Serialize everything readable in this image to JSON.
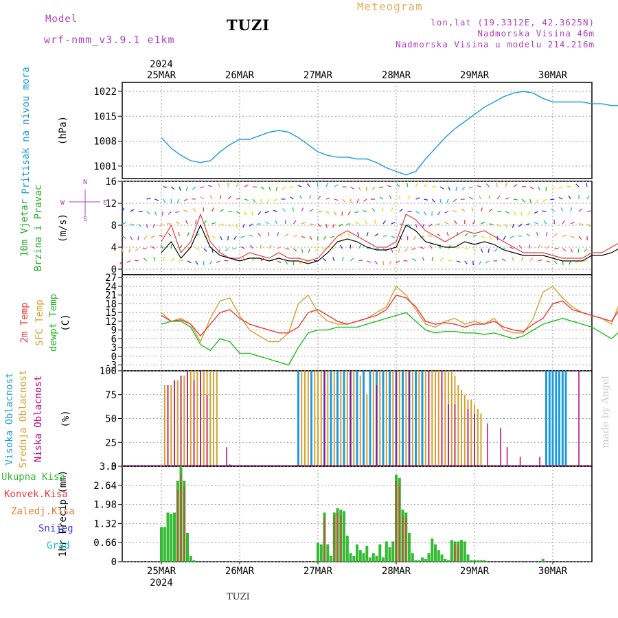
{
  "header": {
    "model_label": "Model",
    "model_name": "wrf-nmm_v3.9.1 e1km",
    "station": "TUZI",
    "meteogram": "Meteogram",
    "coords": "lon,lat (19.3312E, 42.3625N)",
    "elevation": "Nadmorska Visina 46m",
    "model_elevation": "Nadmorska Visina u modelu 214.216m",
    "footer_station": "TUZI",
    "credit": "made by Angel"
  },
  "colors": {
    "pressure": "#1e9be0",
    "wind_label": "#22aa22",
    "temp2m": "#e83a3a",
    "sfc": "#d4a030",
    "dewpt": "#22bb22",
    "cloud_high": "#1e9be0",
    "cloud_mid": "#d4a030",
    "cloud_low": "#c0007a",
    "precip_total": "#33bb33",
    "precip_conv": "#e83a3a",
    "precip_frz": "#e87a30",
    "precip_snow": "#3a3ae8",
    "precip_grad": "#22bbbb",
    "purple": "#b040c0"
  },
  "x_axis": {
    "top_year": "2024",
    "bottom_year": "2024",
    "days": [
      "25MAR",
      "26MAR",
      "27MAR",
      "28MAR",
      "29MAR",
      "30MAR"
    ]
  },
  "chart_data": [
    {
      "type": "line",
      "panel": "pressure",
      "ylabel_main": "Pritisak na nivou mora",
      "ylabel_unit": "(hPa)",
      "yticks": [
        "1001",
        "1008",
        "1015",
        "1022"
      ],
      "ylim": [
        997.5,
        1024.5
      ],
      "x_hours": [
        0,
        3,
        6,
        9,
        12,
        15,
        18,
        21,
        24,
        27,
        30,
        33,
        36,
        39,
        42,
        45,
        48,
        51,
        54,
        57,
        60,
        63,
        66,
        69,
        72,
        75,
        78,
        81,
        84,
        87,
        90,
        93,
        96,
        99,
        102,
        105,
        108,
        111,
        114,
        117,
        120,
        123,
        126,
        129,
        132,
        135,
        138,
        141,
        144
      ],
      "series": [
        {
          "values": [
            1009,
            1006,
            1004,
            1002.5,
            1002,
            1002.5,
            1005,
            1007,
            1008.5,
            1008.5,
            1009.5,
            1010.5,
            1011,
            1010.5,
            1009,
            1007,
            1005,
            1004,
            1003.5,
            1003.5,
            1003,
            1003,
            1002,
            1000.5,
            999.5,
            998.5,
            999.5,
            1003,
            1006,
            1009,
            1011.5,
            1013.5,
            1015.5,
            1017.5,
            1019,
            1020.5,
            1021.5,
            1022,
            1021.5,
            1020,
            1019,
            1019,
            1019,
            1019,
            1018.5,
            1018.5,
            1018,
            1018,
            1017.5
          ]
        }
      ]
    },
    {
      "type": "line",
      "panel": "wind",
      "ylabel_main": "10m Vjetar",
      "ylabel_sub": "Brzina i Pravac",
      "ylabel_unit": "(m/s)",
      "yticks": [
        "0",
        "4",
        "8",
        "12",
        "16"
      ],
      "ylim": [
        -1,
        16
      ],
      "compass": {
        "n": "N",
        "w": "W",
        "e": "E",
        "s": "S"
      },
      "x_hours": [
        0,
        3,
        6,
        9,
        12,
        15,
        18,
        21,
        24,
        27,
        30,
        33,
        36,
        39,
        42,
        45,
        48,
        51,
        54,
        57,
        60,
        63,
        66,
        69,
        72,
        75,
        78,
        81,
        84,
        87,
        90,
        93,
        96,
        99,
        102,
        105,
        108,
        111,
        114,
        117,
        120,
        123,
        126,
        129,
        132,
        135,
        138,
        141,
        144
      ],
      "series": [
        {
          "name": "gust",
          "values": [
            5,
            8,
            3,
            5,
            10,
            5,
            3,
            2,
            2,
            3,
            2.5,
            2,
            3,
            2,
            2,
            1.5,
            2,
            4,
            6,
            7,
            6,
            5,
            4,
            4,
            5,
            10,
            9,
            7,
            6,
            5,
            6,
            7,
            6.5,
            7,
            6,
            5,
            4,
            3,
            3,
            3,
            2.5,
            2,
            2,
            2,
            3,
            3,
            4,
            5,
            6
          ]
        },
        {
          "name": "speed",
          "values": [
            3,
            5,
            2,
            4,
            8,
            4,
            2.5,
            2,
            1.5,
            2,
            2,
            1.5,
            2,
            1.5,
            1.5,
            1,
            1.5,
            3,
            5,
            5.5,
            5,
            4,
            3.5,
            3.5,
            4,
            8,
            7,
            5,
            4.5,
            4,
            4,
            5,
            4.5,
            5,
            4.5,
            3.5,
            3,
            2.5,
            2.5,
            2.5,
            2,
            1.5,
            1.5,
            1.5,
            2.5,
            2.5,
            3,
            4,
            5
          ]
        }
      ]
    },
    {
      "type": "line",
      "panel": "temperature",
      "ylabel_main": "2m Temp",
      "ylabel_sub": "SFC Temp",
      "ylabel_sub2": "dewpt Temp",
      "ylabel_unit": "(C)",
      "yticks": [
        "-3",
        "0",
        "3",
        "6",
        "9",
        "12",
        "15",
        "18",
        "21",
        "24",
        "27"
      ],
      "ylim": [
        -5,
        28
      ],
      "x_hours": [
        0,
        3,
        6,
        9,
        12,
        15,
        18,
        21,
        24,
        27,
        30,
        33,
        36,
        39,
        42,
        45,
        48,
        51,
        54,
        57,
        60,
        63,
        66,
        69,
        72,
        75,
        78,
        81,
        84,
        87,
        90,
        93,
        96,
        99,
        102,
        105,
        108,
        111,
        114,
        117,
        120,
        123,
        126,
        129,
        132,
        135,
        138,
        141,
        144
      ],
      "series": [
        {
          "name": "2m Temp",
          "values": [
            14,
            12,
            12.5,
            11,
            7,
            11,
            15,
            16,
            13,
            11,
            10,
            9,
            8,
            8,
            10,
            15,
            16,
            14,
            12,
            11,
            12,
            13,
            14,
            16,
            21,
            20,
            17,
            12,
            11,
            11.5,
            11,
            10,
            11,
            11,
            12,
            10,
            9,
            8.5,
            11,
            13,
            18,
            19,
            16,
            15,
            14,
            13,
            12,
            17,
            20.5
          ]
        },
        {
          "name": "SFC Temp",
          "values": [
            15,
            12,
            13,
            11,
            5,
            13,
            19,
            20,
            14,
            9,
            7,
            5,
            5,
            8,
            18,
            21,
            15,
            12,
            11,
            11,
            12,
            13,
            15,
            17,
            24,
            21,
            16,
            11,
            10,
            12,
            13,
            11,
            12,
            11,
            13,
            9,
            8,
            8,
            13,
            22,
            24,
            20,
            17,
            15,
            14,
            13,
            11,
            20,
            26
          ]
        },
        {
          "name": "dewpt Temp",
          "values": [
            11,
            12,
            12,
            10,
            4,
            2,
            6,
            5,
            1,
            1,
            0,
            -1,
            -2,
            -3,
            3,
            8,
            9,
            9,
            10,
            10,
            10,
            11,
            12,
            13,
            14,
            15,
            12,
            9,
            8,
            8.5,
            8.5,
            8,
            8,
            7.5,
            8,
            7,
            6,
            7,
            9,
            11,
            12,
            13,
            12,
            11,
            10,
            8,
            6,
            9,
            10.5
          ]
        }
      ]
    },
    {
      "type": "bar",
      "panel": "clouds",
      "ylabel_main": "Visoka Oblacnost",
      "ylabel_sub": "Srednja Oblacnost",
      "ylabel_sub2": "Niska Oblacnost",
      "ylabel_unit": "(%)",
      "yticks": [
        "0",
        "25",
        "50",
        "75",
        "100"
      ],
      "ylim": [
        0,
        100
      ],
      "series": [
        {
          "name": "Visoka Oblacnost",
          "x_hours": [
            42,
            46,
            50,
            52,
            54,
            56,
            58,
            60,
            62,
            64,
            66,
            68,
            70,
            72,
            74,
            76,
            78,
            80,
            118,
            119,
            120,
            121,
            122,
            123,
            124
          ],
          "values": [
            100,
            100,
            100,
            100,
            100,
            100,
            100,
            100,
            100,
            100,
            100,
            100,
            100,
            100,
            100,
            100,
            100,
            100,
            100,
            100,
            100,
            100,
            100,
            100,
            100
          ]
        },
        {
          "name": "Srednja Oblacnost",
          "x_hours": [
            1,
            2,
            3,
            4,
            5,
            6,
            7,
            8,
            9,
            10,
            11,
            12,
            13,
            14,
            15,
            16,
            17,
            43,
            44,
            45,
            46,
            47,
            48,
            49,
            50,
            51,
            52,
            53,
            54,
            55,
            56,
            57,
            58,
            59,
            60,
            61,
            62,
            63,
            64,
            65,
            66,
            67,
            68,
            69,
            70,
            71,
            72,
            73,
            74,
            75,
            76,
            77,
            78,
            79,
            80,
            81,
            82,
            83,
            84,
            85,
            86,
            87,
            88,
            89,
            90,
            91,
            92,
            93,
            94,
            95,
            96,
            97,
            98
          ],
          "values": [
            85,
            85,
            85,
            90,
            90,
            95,
            95,
            100,
            100,
            100,
            100,
            100,
            100,
            100,
            100,
            100,
            100,
            100,
            100,
            100,
            100,
            100,
            100,
            100,
            100,
            100,
            100,
            100,
            100,
            100,
            100,
            100,
            100,
            100,
            100,
            95,
            90,
            75,
            95,
            100,
            100,
            100,
            100,
            100,
            100,
            100,
            100,
            100,
            100,
            100,
            100,
            100,
            100,
            100,
            100,
            100,
            100,
            100,
            100,
            100,
            100,
            100,
            100,
            100,
            95,
            85,
            80,
            75,
            70,
            70,
            65,
            60,
            55
          ]
        },
        {
          "name": "Niska Oblacnost",
          "x_hours": [
            2,
            4,
            6,
            8,
            10,
            12,
            14,
            20,
            21,
            50,
            58,
            66,
            72,
            76,
            82,
            86,
            88,
            90,
            94,
            96,
            100,
            104,
            106,
            110,
            116,
            128
          ],
          "values": [
            85,
            90,
            95,
            100,
            90,
            100,
            75,
            20,
            2,
            100,
            100,
            85,
            100,
            100,
            100,
            100,
            65,
            65,
            60,
            55,
            45,
            40,
            20,
            10,
            10,
            100
          ]
        }
      ]
    },
    {
      "type": "bar",
      "panel": "precip",
      "ylabel_main": "1hr Precip (mm)",
      "yticks": [
        "0",
        "0.66",
        "1.32",
        "1.98",
        "2.64",
        "3.3"
      ],
      "ylim": [
        0,
        3.3
      ],
      "legend": [
        "Ukupna Kisa",
        "Konvek.Kisa",
        "Zaledj.Kisa",
        "Snijeg",
        "Grad"
      ],
      "series": [
        {
          "name": "Ukupna Kisa",
          "x_hours": [
            0,
            1,
            2,
            3,
            4,
            5,
            6,
            7,
            8,
            9,
            10,
            48,
            49,
            50,
            51,
            52,
            53,
            54,
            55,
            56,
            57,
            58,
            59,
            60,
            61,
            62,
            63,
            64,
            65,
            66,
            67,
            68,
            69,
            70,
            71,
            72,
            73,
            74,
            75,
            76,
            77,
            78,
            79,
            80,
            81,
            82,
            83,
            84,
            85,
            86,
            87,
            88,
            89,
            90,
            91,
            92,
            93,
            94,
            95,
            96,
            97,
            98,
            99,
            117
          ],
          "values": [
            1.2,
            1.2,
            1.7,
            1.65,
            1.7,
            2.8,
            3.3,
            2.8,
            1.0,
            0.2,
            0.05,
            0.65,
            0.6,
            1.7,
            0.6,
            0.2,
            1.7,
            1.85,
            1.8,
            1.75,
            0.9,
            0.3,
            0.2,
            0.6,
            0.4,
            0.3,
            0.55,
            0.15,
            0.3,
            0.2,
            0.6,
            0.15,
            0.7,
            0.5,
            0.7,
            3.0,
            2.9,
            1.8,
            1.7,
            1.0,
            0.3,
            0.05,
            0.05,
            0.15,
            0.1,
            0.3,
            0.8,
            0.6,
            0.4,
            0.25,
            0.1,
            0.05,
            0.75,
            0.7,
            0.7,
            0.75,
            0.7,
            0.25,
            0.05,
            0.05,
            0.05,
            0.05,
            0.05,
            0.1
          ]
        },
        {
          "name": "Konvek.Kisa",
          "x_hours": [
            5,
            6,
            7,
            50,
            53,
            54,
            55,
            72,
            73,
            74,
            75,
            90,
            91
          ],
          "values": [
            2.5,
            3.0,
            2.6,
            1.5,
            1.6,
            1.7,
            1.6,
            2.8,
            2.6,
            1.6,
            1.5,
            0.6,
            0.6
          ]
        }
      ]
    }
  ]
}
